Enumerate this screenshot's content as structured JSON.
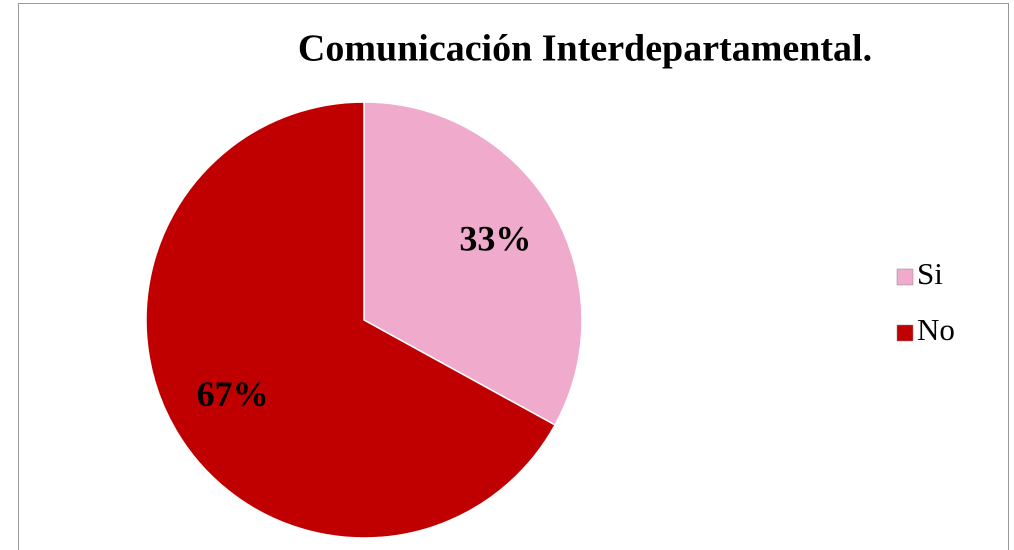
{
  "chart_data": {
    "type": "pie",
    "title": "Comunicación Interdepartamental.",
    "categories": [
      "Si",
      "No"
    ],
    "values": [
      33,
      67
    ],
    "value_labels": [
      "33%",
      "67%"
    ],
    "colors": [
      "#f0aacb",
      "#c00000"
    ],
    "legend": "right"
  }
}
